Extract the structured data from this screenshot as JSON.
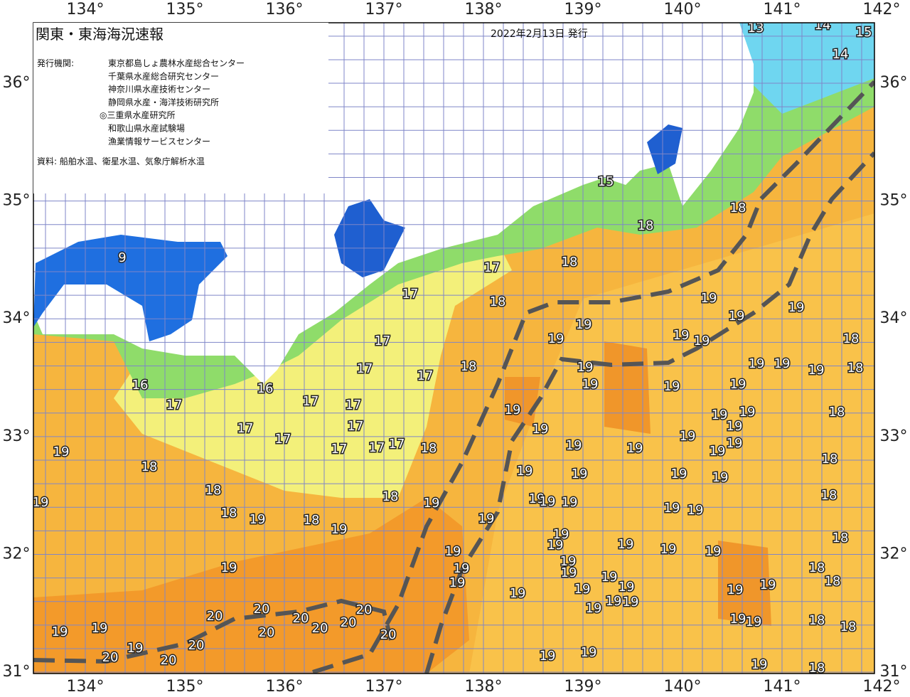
{
  "header": {
    "title": "関東・東海海況速報",
    "date": "2022年2月13日 発行"
  },
  "agencies": {
    "label": "発行機関:",
    "names": [
      "東京都島しょ農林水産総合センター",
      "千葉県水産総合研究センター",
      "神奈川県水産技術センター",
      "静岡県水産・海洋技術研究所",
      "◎三重県水産研究所",
      "和歌山県水産試験場",
      "漁業情報サービスセンター"
    ]
  },
  "source": "資料: 船舶水温、衛星水温、気象庁解析水温",
  "lon_labels": [
    "134°",
    "135°",
    "136°",
    "137°",
    "138°",
    "139°",
    "140°",
    "141°",
    "142°"
  ],
  "lat_labels": [
    "36°",
    "35°",
    "34°",
    "33°",
    "32°",
    "31°"
  ],
  "temperature_labels": [
    "9",
    "16",
    "17",
    "17",
    "17",
    "19",
    "18",
    "18",
    "18",
    "19",
    "18",
    "19",
    "19",
    "19",
    "20",
    "20",
    "20",
    "20",
    "20",
    "20",
    "20",
    "20",
    "20",
    "20",
    "20",
    "19",
    "19",
    "19",
    "16",
    "17",
    "17",
    "17",
    "17",
    "17",
    "17",
    "18",
    "18",
    "19",
    "17",
    "17",
    "17",
    "17",
    "17",
    "18",
    "18",
    "18",
    "15",
    "18",
    "18",
    "13",
    "14",
    "14",
    "15",
    "19",
    "19",
    "19",
    "19",
    "19",
    "19",
    "19",
    "19",
    "19",
    "19",
    "19",
    "19",
    "19",
    "19",
    "19",
    "19",
    "19",
    "19",
    "19",
    "19",
    "19",
    "19",
    "19",
    "19",
    "19",
    "19",
    "19",
    "19",
    "19",
    "19",
    "19",
    "19",
    "19",
    "19",
    "19",
    "19",
    "19",
    "19",
    "18",
    "18",
    "19",
    "19",
    "19",
    "19",
    "19",
    "19",
    "19",
    "19",
    "19",
    "19",
    "19",
    "19",
    "19",
    "19",
    "19",
    "19",
    "19",
    "18",
    "18",
    "18",
    "18",
    "18",
    "18",
    "18",
    "18",
    "19",
    "18",
    "19",
    "19"
  ]
}
